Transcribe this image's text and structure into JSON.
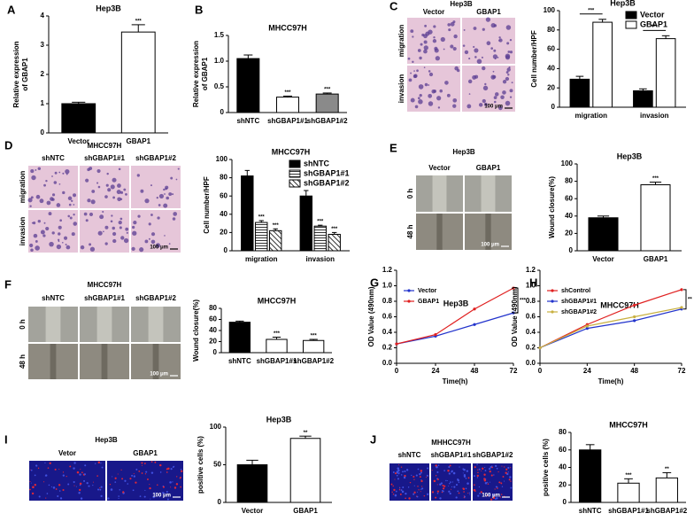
{
  "figure": {
    "letters": [
      "A",
      "B",
      "C",
      "D",
      "E",
      "F",
      "G",
      "H",
      "I",
      "J"
    ],
    "image_panels": [
      {
        "title": "Hep3B",
        "columns": [
          "Vector",
          "GBAP1"
        ],
        "rows": [
          "migration",
          "invasion"
        ],
        "scale_bar": "100 μm"
      },
      {
        "title": "MHCC97H",
        "columns": [
          "shNTC",
          "shGBAP1#1",
          "shGBAP1#2"
        ],
        "rows": [
          "migration",
          "invasion"
        ],
        "scale_bar": "100 μm"
      },
      {
        "title": "Hep3B",
        "columns": [
          "Vector",
          "GBAP1"
        ],
        "rows": [
          "0 h",
          "48 h"
        ],
        "scale_bar": "100 μm"
      },
      {
        "title": "MHCC97H",
        "columns": [
          "shNTC",
          "shGBAP1#1",
          "shGBAP1#2"
        ],
        "rows": [
          "0 h",
          "48 h"
        ],
        "scale_bar": "100 μm"
      },
      {
        "title": "Hep3B",
        "columns": [
          "Vetor",
          "GBAP1"
        ],
        "scale_bar": "100 μm"
      },
      {
        "title": "MHHCC97H",
        "columns": [
          "shNTC",
          "shGBAP1#1",
          "shGBAP1#2"
        ],
        "scale_bar": "100 μm"
      }
    ]
  },
  "chart_data": [
    {
      "type": "bar",
      "title": "Hep3B",
      "ylabel": [
        "Relative expression",
        "of GBAP1"
      ],
      "categories": [
        "Vector",
        "GBAP1"
      ],
      "values": [
        1.0,
        3.45
      ],
      "errors": [
        0.05,
        0.25
      ],
      "colors": [
        "#000000",
        "#ffffff"
      ],
      "annotations": [
        null,
        "***"
      ],
      "ylim": [
        0,
        4
      ],
      "yticks": [
        0,
        1,
        2,
        3,
        4
      ]
    },
    {
      "type": "bar",
      "title": "MHCC97H",
      "ylabel": [
        "Relative expression",
        "of GBAP1"
      ],
      "categories": [
        "shNTC",
        "shGBAP1#1",
        "shGBAP1#2"
      ],
      "values": [
        1.05,
        0.3,
        0.36
      ],
      "errors": [
        0.07,
        0.02,
        0.02
      ],
      "colors": [
        "#000000",
        "#ffffff",
        "#8a8a8a"
      ],
      "annotations": [
        null,
        "***",
        "***"
      ],
      "ylim": [
        0,
        1.5
      ],
      "yticks": [
        0,
        0.5,
        {
          "value": 1,
          "label": "1.0"
        },
        1.5
      ]
    },
    {
      "type": "bar",
      "title": "Hep3B",
      "ylabel": "Cell number/HPF",
      "categories": [
        "migration",
        "invasion"
      ],
      "series": [
        {
          "name": "Vector",
          "color": "#000000",
          "values": [
            29,
            17
          ],
          "errors": [
            3,
            2
          ]
        },
        {
          "name": "GBAP1",
          "color": "#ffffff",
          "values": [
            88,
            71
          ],
          "errors": [
            3,
            3
          ]
        }
      ],
      "annotations": [
        "***",
        "***"
      ],
      "legend": "upper right",
      "ylim": [
        0,
        100
      ],
      "yticks": [
        0,
        20,
        40,
        60,
        80,
        100
      ]
    },
    {
      "type": "bar",
      "title": "MHCC97H",
      "ylabel": "Cell number/HPF",
      "categories": [
        "migration",
        "invasion"
      ],
      "series": [
        {
          "name": "shNTC",
          "color": "#000000",
          "values": [
            82,
            60
          ],
          "errors": [
            6,
            6
          ]
        },
        {
          "name": "shGBAP1#1",
          "color": "#ffffff",
          "hatch": "horizontal",
          "values": [
            31,
            27
          ],
          "errors": [
            2,
            1
          ],
          "annotations": [
            "***",
            "***"
          ]
        },
        {
          "name": "shGBAP1#2",
          "color": "#ffffff",
          "hatch": "diagonal",
          "values": [
            22,
            18
          ],
          "errors": [
            2,
            2
          ],
          "annotations": [
            "***",
            "***"
          ]
        }
      ],
      "legend": "upper right",
      "ylim": [
        0,
        100
      ],
      "yticks": [
        0,
        20,
        40,
        60,
        80,
        100
      ]
    },
    {
      "type": "bar",
      "title": "Hep3B",
      "ylabel": "Wound closure(%)",
      "categories": [
        "Vector",
        "GBAP1"
      ],
      "values": [
        38,
        76
      ],
      "errors": [
        2,
        3
      ],
      "colors": [
        "#000000",
        "#ffffff"
      ],
      "annotations": [
        null,
        "***"
      ],
      "ylim": [
        0,
        100
      ],
      "yticks": [
        0,
        20,
        40,
        60,
        80,
        100
      ]
    },
    {
      "type": "bar",
      "title": "MHCC97H",
      "ylabel": "Wound closure(%)",
      "categories": [
        "shNTC",
        "shGBAP1#1",
        "shGBAP1#2"
      ],
      "values": [
        55,
        24,
        22
      ],
      "errors": [
        2,
        4,
        2
      ],
      "colors": [
        "#000000",
        "#ffffff",
        "#ffffff"
      ],
      "annotations": [
        null,
        "***",
        "***"
      ],
      "ylim": [
        0,
        80
      ],
      "yticks": [
        0,
        20,
        40,
        60,
        80
      ]
    },
    {
      "type": "line",
      "title": "Hep3B",
      "ylabel": "OD Value (490nm)",
      "xlabel": "Time(h)",
      "x": [
        0,
        24,
        48,
        72
      ],
      "series": [
        {
          "name": "Vector",
          "color": "#2233cc",
          "values": [
            0.25,
            0.35,
            0.5,
            0.65
          ]
        },
        {
          "name": "GBAP1",
          "color": "#e02020",
          "values": [
            0.25,
            0.37,
            0.7,
            0.97
          ]
        }
      ],
      "annotation": "***",
      "legend": "upper left",
      "xlim": [
        0,
        72
      ],
      "xticks": [
        0,
        24,
        48,
        72
      ],
      "ylim": [
        0,
        1.2
      ],
      "yticks": [
        {
          "value": 0,
          "label": "0.0"
        },
        0.2,
        0.4,
        0.6,
        0.8,
        {
          "value": 1,
          "label": "1.0"
        },
        1.2
      ]
    },
    {
      "type": "line",
      "title": "MHCC97H",
      "ylabel": "OD Value (490nm)",
      "xlabel": "Time(h)",
      "x": [
        0,
        24,
        48,
        72
      ],
      "series": [
        {
          "name": "shControl",
          "color": "#e02020",
          "values": [
            0.2,
            0.5,
            0.75,
            0.95
          ]
        },
        {
          "name": "shGBAP1#1",
          "color": "#2233cc",
          "values": [
            0.2,
            0.45,
            0.55,
            0.7
          ]
        },
        {
          "name": "shGBAP1#2",
          "color": "#c8b040",
          "values": [
            0.2,
            0.48,
            0.6,
            0.72
          ]
        }
      ],
      "annotation": "**",
      "legend": "upper left",
      "xlim": [
        0,
        72
      ],
      "xticks": [
        0,
        24,
        48,
        72
      ],
      "ylim": [
        0,
        1.2
      ],
      "yticks": [
        {
          "value": 0,
          "label": "0.0"
        },
        0.2,
        0.4,
        0.6,
        0.8,
        {
          "value": 1,
          "label": "1.0"
        },
        1.2
      ]
    },
    {
      "type": "bar",
      "title": "Hep3B",
      "ylabel": "positive cells (%)",
      "categories": [
        "Vector",
        "GBAP1"
      ],
      "values": [
        50,
        85
      ],
      "errors": [
        6,
        3
      ],
      "colors": [
        "#000000",
        "#ffffff"
      ],
      "annotations": [
        null,
        "**"
      ],
      "ylim": [
        0,
        100
      ],
      "yticks": [
        0,
        50,
        100
      ]
    },
    {
      "type": "bar",
      "title": "MHCC97H",
      "ylabel": "positive cells (%)",
      "categories": [
        "shNTC",
        "shGBAP1#1",
        "shGBAP1#2"
      ],
      "values": [
        60,
        22,
        28
      ],
      "errors": [
        6,
        5,
        6
      ],
      "colors": [
        "#000000",
        "#ffffff",
        "#ffffff"
      ],
      "annotations": [
        null,
        "***",
        "**"
      ],
      "ylim": [
        0,
        80
      ],
      "yticks": [
        0,
        20,
        40,
        60,
        80
      ]
    }
  ]
}
